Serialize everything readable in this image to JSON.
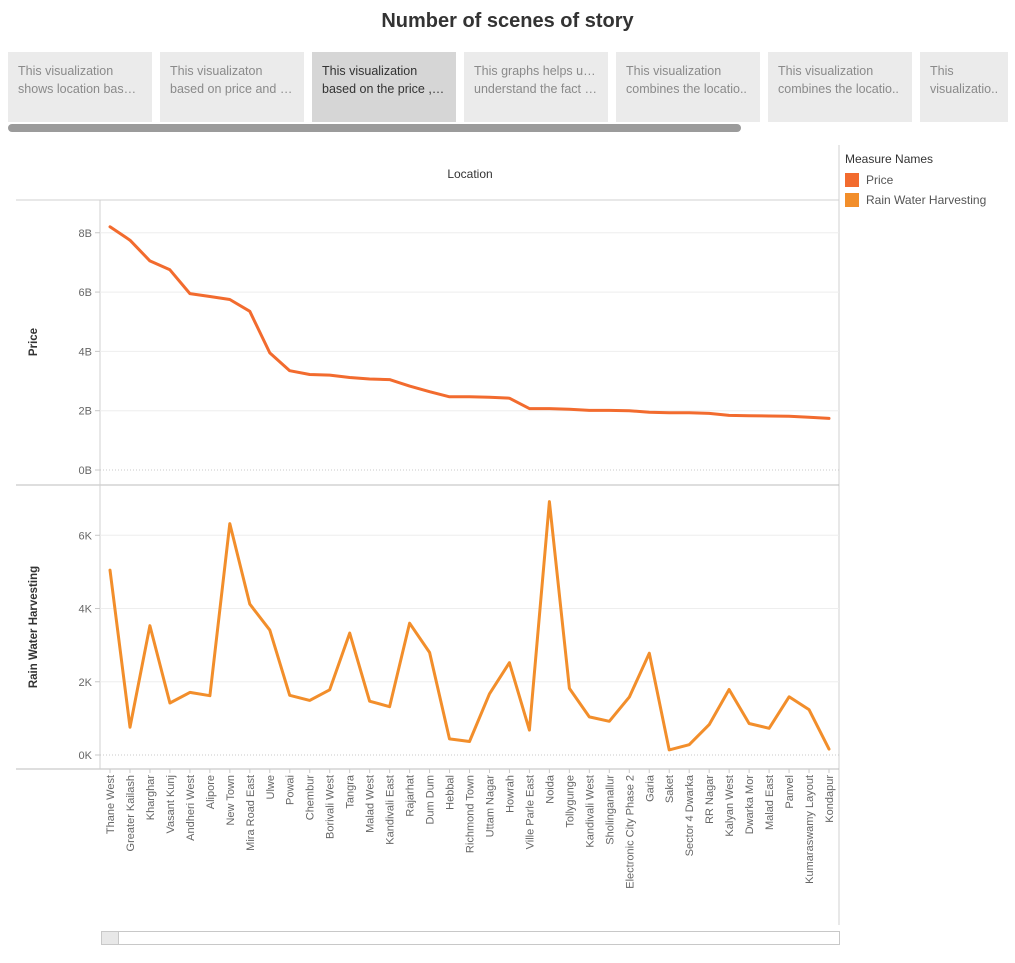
{
  "story": {
    "title": "Number of scenes of story",
    "points": [
      {
        "line1": "This visualization",
        "line2": "shows location based .."
      },
      {
        "line1": "This visualizaton",
        "line2": "based on price and ar.."
      },
      {
        "line1": "This visualization",
        "line2": "based on the price ,R.."
      },
      {
        "line1": "This graphs helps us to",
        "line2": "understand the fact o.."
      },
      {
        "line1": "This visualization",
        "line2": "combines the locatio.."
      },
      {
        "line1": "This visualization",
        "line2": "combines the locatio.."
      },
      {
        "line1": "This",
        "line2": "visualizatio.."
      }
    ],
    "active_index": 2
  },
  "legend": {
    "title": "Measure Names",
    "items": [
      {
        "label": "Price",
        "color": "#f26b2e"
      },
      {
        "label": "Rain Water Harvesting",
        "color": "#f28e2b"
      }
    ]
  },
  "chart_data": {
    "type": "line",
    "column_header": "Location",
    "x": [
      "Thane West",
      "Greater Kailash",
      "Kharghar",
      "Vasant Kunj",
      "Andheri West",
      "Alipore",
      "New Town",
      "Mira Road East",
      "Ulwe",
      "Powai",
      "Chembur",
      "Borivali West",
      "Tangra",
      "Malad West",
      "Kandivali East",
      "Rajarhat",
      "Dum Dum",
      "Hebbal",
      "Richmond Town",
      "Uttam Nagar",
      "Howrah",
      "Ville Parle East",
      "Noida",
      "Tollygunge",
      "Kandivali West",
      "Sholinganallur",
      "Electronic City Phase 2",
      "Garia",
      "Saket",
      "Sector 4 Dwarka",
      "RR Nagar",
      "Kalyan West",
      "Dwarka Mor",
      "Malad East",
      "Panvel",
      "Kumaraswamy Layout",
      "Kondapur"
    ],
    "series": [
      {
        "name": "Price",
        "color": "#f26b2e",
        "ylabel": "Price",
        "yticks": [
          "0B",
          "2B",
          "4B",
          "6B",
          "8B"
        ],
        "ylim": [
          0,
          8700000000
        ],
        "values": [
          8200000000,
          7750000000,
          7050000000,
          6750000000,
          5950000000,
          5850000000,
          5750000000,
          5350000000,
          3950000000,
          3350000000,
          3220000000,
          3200000000,
          3120000000,
          3070000000,
          3050000000,
          2830000000,
          2640000000,
          2470000000,
          2470000000,
          2450000000,
          2420000000,
          2070000000,
          2070000000,
          2050000000,
          2010000000,
          2010000000,
          2000000000,
          1950000000,
          1930000000,
          1930000000,
          1910000000,
          1840000000,
          1830000000,
          1820000000,
          1810000000,
          1780000000,
          1740000000
        ]
      },
      {
        "name": "Rain Water Harvesting",
        "color": "#f28e2b",
        "ylabel": "Rain Water Harvesting",
        "yticks": [
          "0K",
          "2K",
          "4K",
          "6K"
        ],
        "ylim": [
          0,
          7100
        ],
        "values": [
          5050,
          760,
          3530,
          1420,
          1710,
          1620,
          6320,
          4120,
          3410,
          1630,
          1490,
          1780,
          3330,
          1470,
          1320,
          3600,
          2800,
          440,
          370,
          1670,
          2520,
          680,
          6920,
          1820,
          1040,
          920,
          1580,
          2780,
          140,
          280,
          830,
          1790,
          860,
          730,
          1590,
          1240,
          160
        ]
      }
    ],
    "grid": true,
    "legend_position": "right"
  }
}
